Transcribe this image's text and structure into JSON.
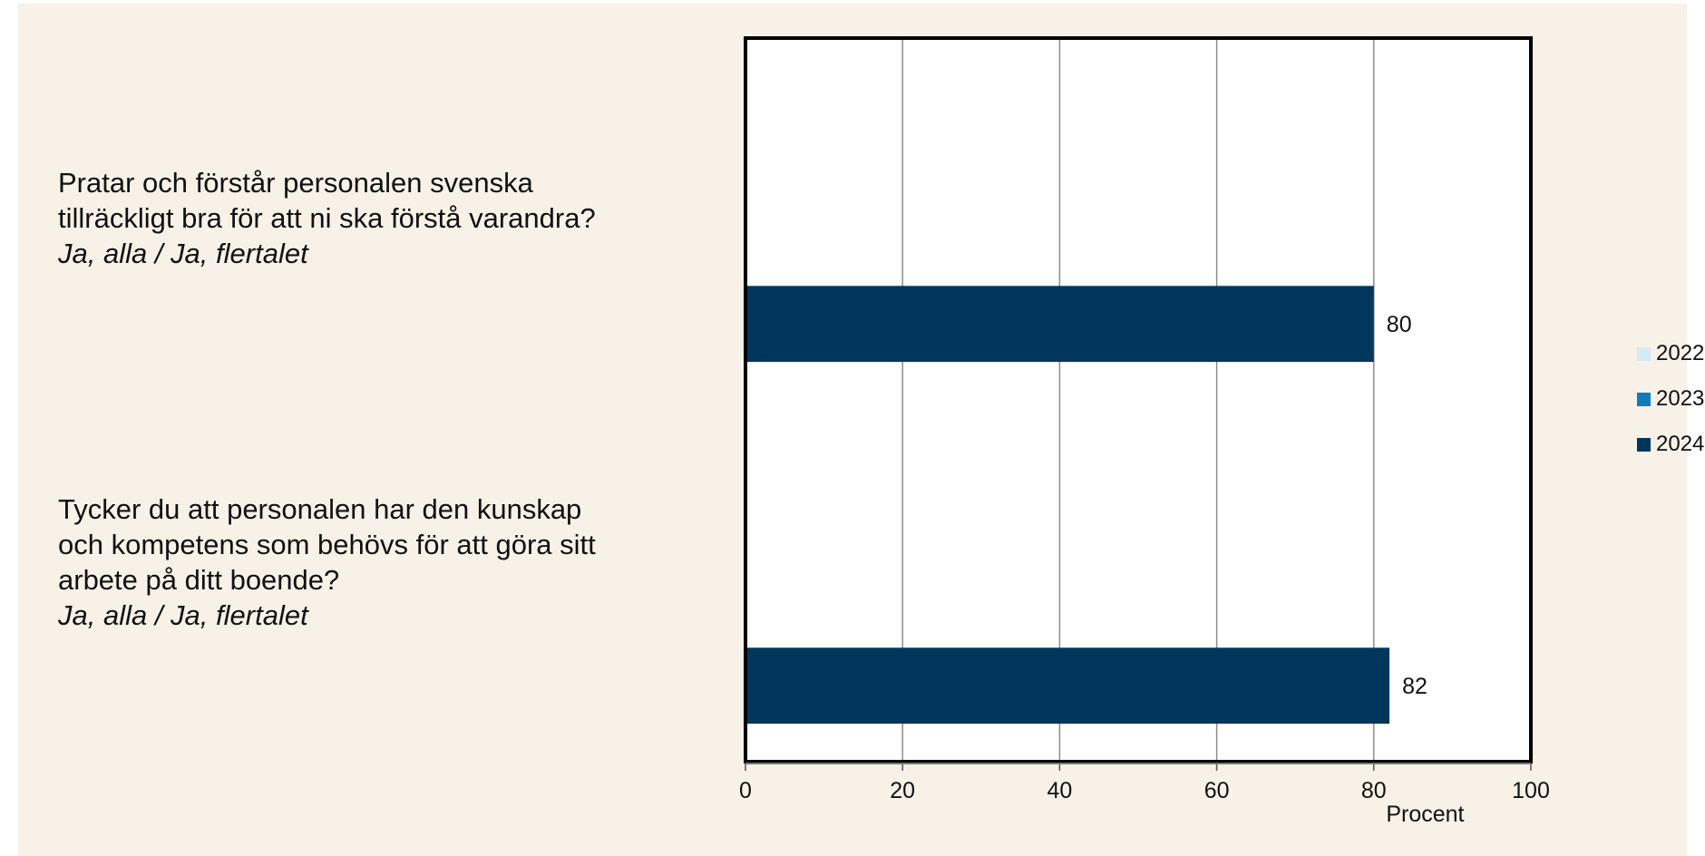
{
  "chart_data": {
    "type": "bar",
    "orientation": "horizontal",
    "categories": [
      {
        "question": "Pratar och förstår personalen svenska tillräckligt bra för att ni ska förstå varandra?",
        "answer": "Ja, alla / Ja, flertalet"
      },
      {
        "question": "Tycker du att personalen har den kunskap och kompetens som behövs för att göra sitt arbete på ditt boende?",
        "answer": "Ja, alla / Ja, flertalet"
      }
    ],
    "series": [
      {
        "name": "2022",
        "color": "#d6eaf5",
        "values": [
          null,
          null
        ]
      },
      {
        "name": "2023",
        "color": "#0f7cc0",
        "values": [
          null,
          null
        ]
      },
      {
        "name": "2024",
        "color": "#00375a",
        "values": [
          80,
          82
        ]
      }
    ],
    "data_labels": [
      "80",
      "82"
    ],
    "xlim": [
      0,
      100
    ],
    "xticks": [
      0,
      20,
      40,
      60,
      80,
      100
    ],
    "xlabel": "Procent",
    "grid": true,
    "legend_position": "right"
  }
}
